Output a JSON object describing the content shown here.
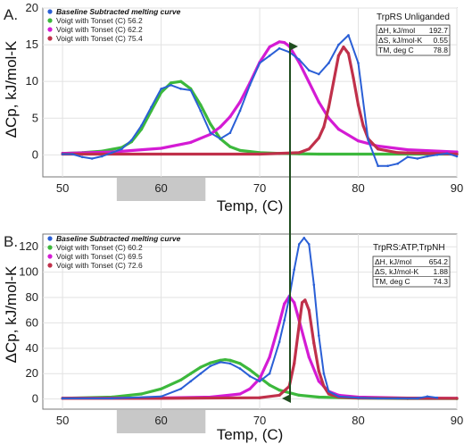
{
  "figure": {
    "ylabel": "ΔCp, kJ/mol-K",
    "colors": {
      "baseline": "#2a5fd6",
      "green": "#3cb83c",
      "magenta": "#d41bd4",
      "red": "#c0304a",
      "arrow": "#1f4d1f",
      "shade": "#c8c8c8"
    }
  },
  "chart_data": [
    {
      "type": "line",
      "panel_label": "A.",
      "xlabel": "Temp, (C)",
      "xlim": [
        48,
        90
      ],
      "ylim": [
        -3,
        20
      ],
      "xticks": [
        50,
        60,
        70,
        80,
        90
      ],
      "yticks": [
        0,
        5,
        10,
        15,
        20
      ],
      "box_title": "TrpRS Unliganded",
      "thermo_table": [
        {
          "label": "ΔH, kJ/mol",
          "value": "192.7"
        },
        {
          "label": "ΔS, kJ/mol-K",
          "value": "0.55"
        },
        {
          "label": "TM, deg C",
          "value": "78.8"
        }
      ],
      "legend": [
        {
          "label": "Baseline Subtracted melting curve",
          "color": "#2a5fd6",
          "bold": true
        },
        {
          "label": "Voigt with Tonset (C) 56.2",
          "color": "#3cb83c",
          "bold": false
        },
        {
          "label": "Voigt with Tonset (C) 62.2",
          "color": "#d41bd4",
          "bold": false
        },
        {
          "label": "Voigt with Tonset (C) 75.4",
          "color": "#c0304a",
          "bold": false
        }
      ],
      "shaded_range": [
        55.5,
        64.5
      ],
      "series": [
        {
          "name": "Baseline Subtracted melting curve",
          "style": "dotted-line",
          "color": "#2a5fd6",
          "x": [
            50,
            51,
            52,
            53,
            54,
            55,
            56,
            57,
            58,
            59,
            60,
            61,
            62,
            63,
            64,
            65,
            66,
            67,
            68,
            69,
            70,
            71,
            72,
            73,
            74,
            75,
            76,
            77,
            78,
            79,
            80,
            81,
            82,
            83,
            84,
            85,
            86,
            87,
            88,
            89,
            90
          ],
          "y": [
            0.1,
            0.1,
            -0.3,
            -0.5,
            -0.2,
            0.3,
            0.8,
            2.0,
            4.0,
            6.5,
            9.0,
            9.5,
            9.0,
            8.8,
            6.0,
            3.0,
            2.2,
            3.0,
            6.0,
            9.5,
            12.5,
            13.5,
            14.5,
            14.0,
            13.0,
            11.5,
            11.0,
            12.5,
            15.0,
            16.3,
            12.5,
            2.0,
            -1.5,
            -1.5,
            -1.2,
            -0.3,
            -0.5,
            -0.2,
            0.0,
            0.2,
            -0.2
          ]
        },
        {
          "name": "Voigt with Tonset (C) 56.2",
          "style": "dotted-line",
          "color": "#3cb83c",
          "x": [
            50,
            52,
            54,
            56,
            57,
            58,
            59,
            60,
            61,
            62,
            63,
            64,
            65,
            66,
            67,
            68,
            70,
            72,
            74,
            76,
            80,
            85,
            90
          ],
          "y": [
            0.2,
            0.3,
            0.5,
            1.0,
            1.8,
            3.5,
            6.0,
            8.5,
            9.8,
            10.0,
            9.0,
            6.8,
            4.2,
            2.2,
            1.1,
            0.6,
            0.3,
            0.2,
            0.15,
            0.1,
            0.1,
            0.1,
            0.1
          ]
        },
        {
          "name": "Voigt with Tonset (C) 62.2",
          "style": "dotted-line",
          "color": "#d41bd4",
          "x": [
            50,
            55,
            60,
            63,
            65,
            66,
            67,
            68,
            69,
            70,
            71,
            72,
            72.5,
            73,
            74,
            75,
            76,
            77,
            78,
            80,
            82,
            85,
            90
          ],
          "y": [
            0.2,
            0.4,
            0.9,
            1.7,
            2.8,
            3.8,
            5.2,
            7.2,
            9.8,
            12.6,
            14.7,
            15.4,
            15.3,
            14.8,
            12.6,
            9.9,
            7.2,
            5.0,
            3.5,
            1.9,
            1.2,
            0.7,
            0.4
          ]
        },
        {
          "name": "Voigt with Tonset (C) 75.4",
          "style": "dotted-line",
          "color": "#c0304a",
          "x": [
            50,
            60,
            70,
            74,
            75,
            76,
            76.5,
            77,
            77.5,
            78,
            78.5,
            79,
            79.5,
            80,
            80.5,
            81,
            82,
            84,
            90
          ],
          "y": [
            0.1,
            0.1,
            0.1,
            0.3,
            0.8,
            2.3,
            3.8,
            6.5,
            10.0,
            13.5,
            14.7,
            13.8,
            10.5,
            6.8,
            4.0,
            2.2,
            0.8,
            0.3,
            0.1
          ]
        }
      ]
    },
    {
      "type": "line",
      "panel_label": "B.",
      "xlabel": "Temp, (C)",
      "xlim": [
        48,
        90
      ],
      "ylim": [
        -8,
        130
      ],
      "xticks": [
        50,
        60,
        70,
        80,
        90
      ],
      "yticks": [
        0,
        20,
        40,
        60,
        80,
        100,
        120
      ],
      "box_title": "TrpRS:ATP,TrpNH",
      "thermo_table": [
        {
          "label": "ΔH, kJ/mol",
          "value": "654.2"
        },
        {
          "label": "ΔS, kJ/mol-K",
          "value": "1.88"
        },
        {
          "label": "TM, deg C",
          "value": "74.3"
        }
      ],
      "legend": [
        {
          "label": "Baseline Subtracted melting curve",
          "color": "#2a5fd6",
          "bold": true
        },
        {
          "label": "Voigt with Tonset (C) 60.2",
          "color": "#3cb83c",
          "bold": false
        },
        {
          "label": "Voigt with Tonset (C) 69.5",
          "color": "#d41bd4",
          "bold": false
        },
        {
          "label": "Voigt with Tonset (C) 72.6",
          "color": "#c0304a",
          "bold": false
        }
      ],
      "shaded_range": [
        55.5,
        64.5
      ],
      "series": [
        {
          "name": "Baseline Subtracted melting curve",
          "style": "dotted-line",
          "color": "#2a5fd6",
          "x": [
            50,
            55,
            60,
            62,
            63,
            64,
            65,
            66,
            67,
            68,
            69,
            70,
            71,
            72,
            72.5,
            73,
            73.5,
            74,
            74.5,
            75,
            75.5,
            76,
            76.5,
            77,
            78,
            80,
            82,
            84,
            86,
            87,
            88
          ],
          "y": [
            0.5,
            0.5,
            2,
            8,
            14,
            20,
            26,
            29,
            28,
            24,
            18,
            14,
            20,
            45,
            62,
            80,
            102,
            122,
            127,
            122,
            90,
            50,
            20,
            6,
            2,
            1,
            0.5,
            0.5,
            0.5,
            2,
            1
          ]
        },
        {
          "name": "Voigt with Tonset (C) 60.2",
          "style": "dotted-line",
          "color": "#3cb83c",
          "x": [
            50,
            55,
            58,
            60,
            62,
            63,
            64,
            65,
            66,
            66.5,
            67,
            68,
            69,
            70,
            71,
            72,
            74,
            76,
            80,
            85,
            90
          ],
          "y": [
            0.5,
            1.5,
            4,
            8,
            15,
            20,
            25,
            28.5,
            30.5,
            31,
            30.5,
            28,
            23,
            17,
            11,
            7,
            3,
            1.5,
            0.7,
            0.4,
            0.3
          ]
        },
        {
          "name": "Voigt with Tonset (C) 69.5",
          "style": "dotted-line",
          "color": "#d41bd4",
          "x": [
            50,
            60,
            65,
            68,
            69,
            70,
            71,
            72,
            72.5,
            73,
            73.5,
            74,
            75,
            76,
            77,
            78,
            80,
            85,
            90
          ],
          "y": [
            0.5,
            0.8,
            1.5,
            4,
            8,
            16,
            33,
            60,
            75,
            81,
            76,
            62,
            33,
            14,
            6,
            3,
            1.5,
            0.7,
            0.5
          ]
        },
        {
          "name": "Voigt with Tonset (C) 72.6",
          "style": "dotted-line",
          "color": "#c0304a",
          "x": [
            50,
            60,
            70,
            72,
            73,
            73.5,
            74,
            74.3,
            74.6,
            75,
            75.5,
            76,
            76.5,
            77,
            78,
            80,
            90
          ],
          "y": [
            0.5,
            0.5,
            1,
            3,
            10,
            28,
            58,
            76,
            78,
            70,
            44,
            22,
            10,
            4,
            1.5,
            0.8,
            0.5
          ]
        }
      ]
    }
  ]
}
